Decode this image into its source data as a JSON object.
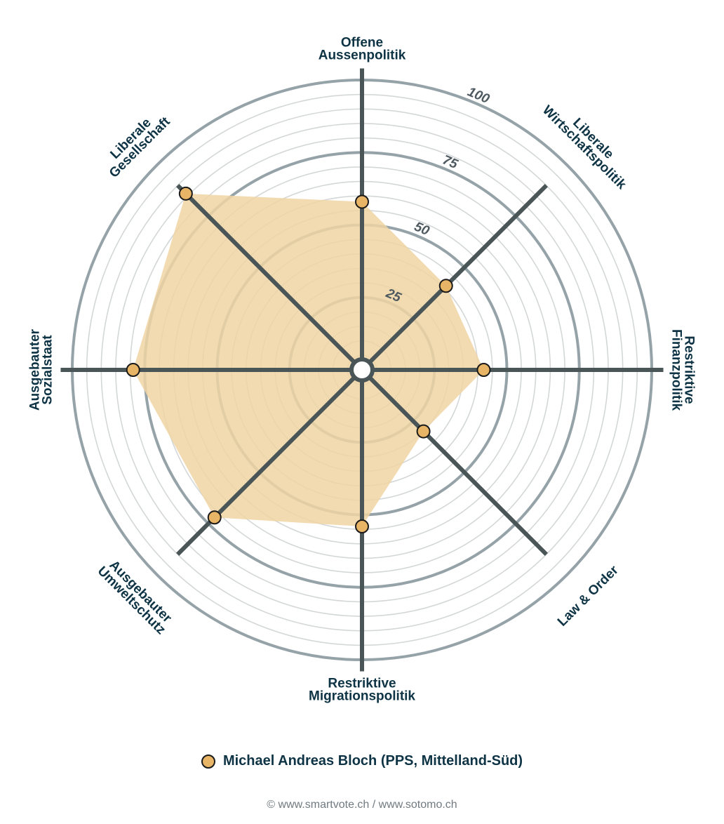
{
  "chart_data": {
    "type": "radar",
    "axes": [
      {
        "label": [
          "Offene",
          "Aussenpolitik"
        ],
        "value": 58
      },
      {
        "label": [
          "Liberale",
          "Wirtschaftspolitik"
        ],
        "value": 41
      },
      {
        "label": [
          "Restriktive",
          "Finanzpolitik"
        ],
        "value": 42
      },
      {
        "label": [
          "Law & Order"
        ],
        "value": 30
      },
      {
        "label": [
          "Restriktive",
          "Migrationspolitik"
        ],
        "value": 54
      },
      {
        "label": [
          "Ausgebauter",
          "Umweltschutz"
        ],
        "value": 72
      },
      {
        "label": [
          "Ausgebauter",
          "Sozialstaat"
        ],
        "value": 79
      },
      {
        "label": [
          "Liberale",
          "Gesellschaft"
        ],
        "value": 86
      }
    ],
    "r_range": [
      0,
      100
    ],
    "ticks": [
      25,
      50,
      75,
      100
    ],
    "minor_step": 5,
    "series": [
      {
        "name": "Michael Andreas Bloch (PPS, Mittelland-Süd)",
        "color": "#e8b566"
      }
    ]
  },
  "legend": {
    "label": "Michael Andreas Bloch (PPS, Mittelland-Süd)"
  },
  "footer": {
    "copyright": "© www.smartvote.ch / www.sotomo.ch"
  },
  "colors": {
    "fill": "#f0d5a3",
    "marker": "#e8b566",
    "spoke": "#4a5558",
    "ring": "#95a3a8",
    "grid": "#d4d7d8",
    "text": "#0d3344"
  }
}
